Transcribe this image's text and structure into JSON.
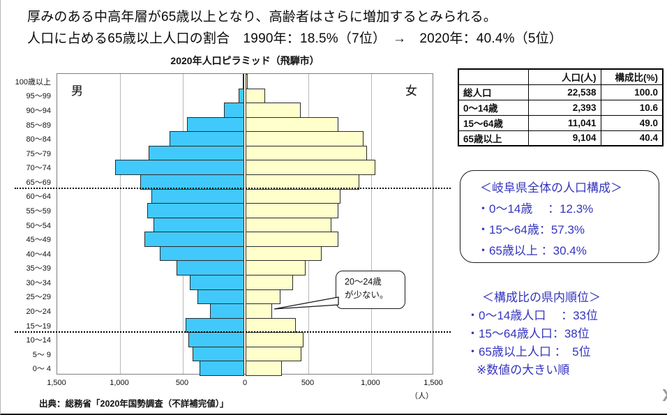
{
  "header": {
    "line1": "厚みのある中高年層が65歳以上となり、高齢者はさらに増加するとみられる。",
    "line2": "人口に占める65歳以上人口の割合　1990年：18.5%（7位）　→　2020年：40.4%（5位）"
  },
  "chart": {
    "title": "2020年人口ピラミッド（飛騨市）",
    "male_label": "男",
    "female_label": "女",
    "unit_label": "（人）",
    "source": "出典：総務省「2020年国勢調査（不詳補完値）」",
    "annotation": {
      "line1": "20〜24歳",
      "line2": "が少ない。"
    }
  },
  "chart_data": {
    "type": "bar",
    "subtype": "population-pyramid",
    "title": "2020年人口ピラミッド（飛騨市）",
    "categories": [
      "100歳以上",
      "95〜99",
      "90〜94",
      "85〜89",
      "80〜84",
      "75〜79",
      "70〜74",
      "65〜69",
      "60〜64",
      "55〜59",
      "50〜54",
      "45〜49",
      "40〜44",
      "35〜39",
      "30〜34",
      "25〜29",
      "20〜24",
      "15〜19",
      "10〜14",
      "5〜 9",
      "0〜 4"
    ],
    "series": [
      {
        "name": "男",
        "side": "left",
        "values": [
          5,
          45,
          160,
          455,
          595,
          760,
          1030,
          830,
          740,
          770,
          720,
          795,
          670,
          540,
          435,
          375,
          275,
          465,
          445,
          410,
          355
        ]
      },
      {
        "name": "女",
        "side": "right",
        "values": [
          15,
          155,
          440,
          740,
          940,
          965,
          1035,
          905,
          755,
          740,
          685,
          740,
          605,
          480,
          380,
          275,
          210,
          400,
          460,
          445,
          290
        ]
      }
    ],
    "xlabel": "（人）",
    "x_ticks": [
      "1,500",
      "1,000",
      "500",
      "0",
      "500",
      "1,000",
      "1,500"
    ],
    "x_max_each_side": 1500,
    "gridline_step": 500,
    "grid": true,
    "dotted_separators_below": [
      "65〜69",
      "15〜19"
    ],
    "annotation_text": "20〜24歳が少ない。",
    "colors": {
      "male": "#41c9fb",
      "female": "#ffffcc",
      "bar_border": "#2b2b2b"
    }
  },
  "table": {
    "headers": [
      "",
      "人口(人)",
      "構成比(%)"
    ],
    "rows": [
      [
        "総人口",
        "22,538",
        "100.0"
      ],
      [
        "0〜14歳",
        "2,393",
        "10.6"
      ],
      [
        "15〜64歳",
        "11,041",
        "49.0"
      ],
      [
        "65歳以上",
        "9,104",
        "40.4"
      ]
    ]
  },
  "prefecture_box": {
    "title": "＜岐阜県全体の人口構成＞",
    "items": [
      "・0〜14歳　 ：12.3%",
      "・15〜64歳：57.3%",
      "・65歳以上 ：30.4%"
    ]
  },
  "ranking": {
    "title": "＜構成比の県内順位＞",
    "items": [
      "・0〜14歳人口　 ：33位",
      "・15〜64歳人口：38位",
      "・65歳以上人口 ：　5位"
    ],
    "note": "※数値の大きい順"
  },
  "icons": {
    "next_arrow": "❯"
  },
  "accent_color": "#3434bf"
}
